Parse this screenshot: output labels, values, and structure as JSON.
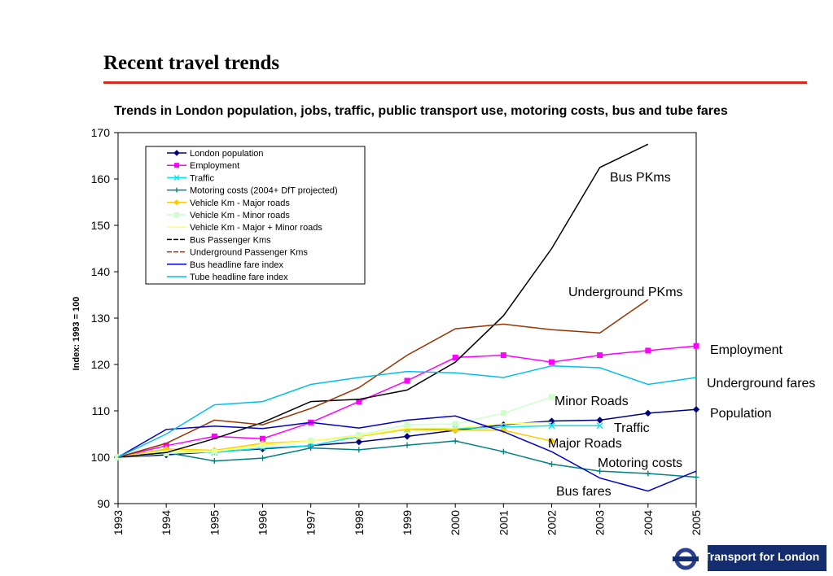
{
  "slide": {
    "title": "Recent travel trends"
  },
  "logo": {
    "text": "Transport for London",
    "ring_color": "#2a3f8f",
    "band_color": "#142d6e"
  },
  "chart_data": {
    "type": "line",
    "title": "Trends in London population, jobs, traffic, public transport use, motoring costs, bus and tube fares",
    "ylabel": "Index: 1993 = 100",
    "xlabel": "",
    "x": [
      "1993",
      "1994",
      "1995",
      "1996",
      "1997",
      "1998",
      "1999",
      "2000",
      "2001",
      "2002",
      "2003",
      "2004",
      "2005"
    ],
    "ylim": [
      90,
      170
    ],
    "yticks": [
      90,
      100,
      110,
      120,
      130,
      140,
      150,
      160,
      170
    ],
    "legend_position": "top-left",
    "grid": false,
    "series": [
      {
        "name": "London population",
        "color": "#000080",
        "marker": "diamond",
        "values": [
          100,
          100.5,
          101.2,
          101.8,
          102.5,
          103.3,
          104.5,
          105.8,
          107.0,
          107.8,
          108.0,
          109.5,
          110.3
        ]
      },
      {
        "name": "Employment",
        "color": "#ff00ff",
        "marker": "square",
        "values": [
          100,
          102.5,
          104.5,
          104.0,
          107.5,
          112.0,
          116.5,
          121.5,
          122.0,
          120.5,
          122.0,
          123.0,
          124.0
        ]
      },
      {
        "name": "Traffic",
        "color": "#00e5ee",
        "marker": "x",
        "values": [
          100,
          101.5,
          101.0,
          102.0,
          102.5,
          104.5,
          106.0,
          106.2,
          106.5,
          106.8,
          106.8,
          null,
          null
        ]
      },
      {
        "name": "Motoring costs (2004+ DfT projected)",
        "color": "#008080",
        "marker": "plus",
        "values": [
          100,
          101.0,
          99.2,
          99.8,
          102.0,
          101.6,
          102.6,
          103.5,
          101.2,
          98.5,
          97.0,
          96.5,
          95.7
        ]
      },
      {
        "name": "Vehicle Km - Major  roads",
        "color": "#ffcc00",
        "marker": "diamond",
        "values": [
          100,
          101.8,
          101.5,
          103.0,
          103.5,
          104.5,
          106.0,
          105.8,
          105.8,
          103.5,
          null,
          null,
          null
        ]
      },
      {
        "name": "Vehicle Km - Minor  roads",
        "color": "#ccffcc",
        "marker": "square",
        "values": [
          100,
          100.8,
          101.2,
          102.5,
          103.5,
          104.8,
          107.0,
          107.2,
          109.5,
          113.0,
          null,
          null,
          null
        ]
      },
      {
        "name": "Vehicle Km - Major + Minor  roads",
        "color": "#ffff66",
        "marker": "none",
        "values": [
          100,
          101.4,
          101.3,
          102.7,
          103.5,
          104.6,
          106.3,
          106.3,
          107.2,
          107.5,
          null,
          null,
          null
        ]
      },
      {
        "name": "Bus Passenger Kms",
        "color": "#000000",
        "marker": "none",
        "values": [
          100,
          101.0,
          104.0,
          107.5,
          112.0,
          112.5,
          114.5,
          120.5,
          130.5,
          145.0,
          162.5,
          167.5,
          null
        ]
      },
      {
        "name": "Underground Passenger Kms",
        "color": "#993300",
        "marker": "none",
        "values": [
          100,
          103.0,
          108.0,
          107.0,
          110.5,
          115.0,
          122.0,
          127.7,
          128.7,
          127.5,
          126.8,
          134.0,
          null
        ]
      },
      {
        "name": "Bus headline fare index",
        "color": "#0000cc",
        "marker": "none",
        "values": [
          100,
          106.0,
          106.7,
          106.2,
          107.5,
          106.3,
          108.0,
          108.9,
          105.5,
          101.2,
          95.5,
          92.7,
          97.0
        ]
      },
      {
        "name": "Tube headline fare index",
        "color": "#00bfef",
        "marker": "none",
        "values": [
          100,
          105.0,
          111.3,
          112.0,
          115.7,
          117.2,
          118.5,
          118.2,
          117.2,
          119.7,
          119.3,
          115.7,
          117.2
        ]
      }
    ],
    "annotations": [
      {
        "text": "Bus PKms"
      },
      {
        "text": "Underground PKms"
      },
      {
        "text": "Employment"
      },
      {
        "text": "Underground fares"
      },
      {
        "text": "Minor Roads"
      },
      {
        "text": "Population"
      },
      {
        "text": "Traffic"
      },
      {
        "text": "Major Roads"
      },
      {
        "text": "Motoring costs"
      },
      {
        "text": "Bus fares"
      }
    ]
  }
}
